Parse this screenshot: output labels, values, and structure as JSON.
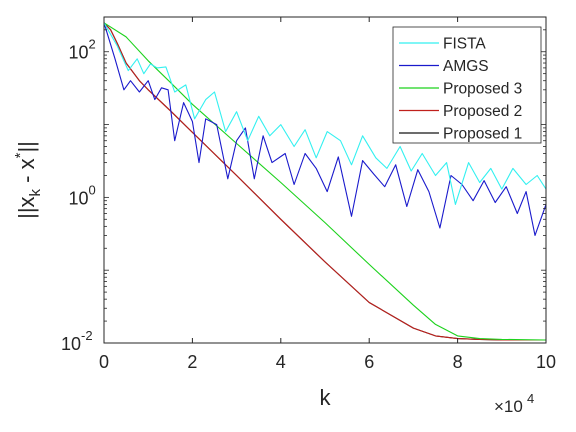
{
  "chart_data": {
    "type": "line",
    "title": "",
    "xlabel": "k",
    "ylabel": "||x_k - x^*||",
    "x_multiplier": "×10^4",
    "xlim": [
      0,
      10
    ],
    "ylim": [
      0.01,
      300
    ],
    "yscale": "log",
    "x_ticks": [
      0,
      2,
      4,
      6,
      8,
      10
    ],
    "y_ticks": [
      {
        "value": 100,
        "base": "10",
        "exp": "2"
      },
      {
        "value": 1,
        "base": "10",
        "exp": "0"
      },
      {
        "value": 0.01,
        "base": "10",
        "exp": "-2"
      }
    ],
    "legend_position": "top-right",
    "grid": false,
    "series": [
      {
        "name": "FISTA",
        "color": "#33f0f0",
        "x": [
          0,
          0.3,
          0.55,
          0.75,
          0.9,
          1.05,
          1.2,
          1.4,
          1.6,
          1.85,
          2.05,
          2.3,
          2.5,
          2.75,
          3.0,
          3.25,
          3.5,
          3.75,
          4.0,
          4.3,
          4.55,
          4.8,
          5.05,
          5.35,
          5.6,
          5.85,
          6.15,
          6.4,
          6.7,
          6.95,
          7.2,
          7.5,
          7.75,
          7.95,
          8.25,
          8.5,
          8.75,
          9.0,
          9.25,
          9.55,
          9.8,
          10.0
        ],
        "y": [
          250,
          120,
          55,
          80,
          50,
          68,
          60,
          62,
          28,
          35,
          12,
          22,
          28,
          8,
          15,
          6,
          13,
          7,
          10,
          5,
          8.5,
          3.5,
          8,
          6,
          2.8,
          7,
          3.5,
          2.5,
          5,
          2.3,
          4,
          2,
          3,
          0.8,
          3,
          1.6,
          2.5,
          1.3,
          2.5,
          1.5,
          2,
          1.3
        ]
      },
      {
        "name": "AMGS",
        "color": "#1a1acc",
        "x": [
          0,
          0.25,
          0.45,
          0.6,
          0.8,
          1.0,
          1.15,
          1.3,
          1.45,
          1.6,
          1.8,
          2.0,
          2.15,
          2.3,
          2.55,
          2.8,
          3.0,
          3.2,
          3.4,
          3.6,
          3.8,
          4.1,
          4.3,
          4.55,
          4.8,
          5.05,
          5.3,
          5.6,
          5.85,
          6.1,
          6.35,
          6.6,
          6.85,
          7.1,
          7.35,
          7.6,
          7.85,
          8.1,
          8.35,
          8.6,
          8.85,
          9.1,
          9.35,
          9.55,
          9.75,
          10.0
        ],
        "y": [
          250,
          80,
          30,
          40,
          28,
          40,
          22,
          32,
          30,
          6,
          20,
          11,
          3,
          12,
          10,
          1.8,
          6,
          9,
          1.8,
          7,
          3,
          4,
          1.5,
          4,
          2.5,
          1.2,
          3.6,
          0.55,
          3.2,
          2.1,
          1.4,
          2.8,
          0.75,
          2.4,
          1.2,
          0.38,
          2,
          1.5,
          0.9,
          1.7,
          0.85,
          1.4,
          0.6,
          1.2,
          0.3,
          0.8
        ]
      },
      {
        "name": "Proposed 3",
        "color": "#1cd21c",
        "x": [
          0,
          0.5,
          1.0,
          1.5,
          2.0,
          3.0,
          4.0,
          5.0,
          6.0,
          7.0,
          7.5,
          8.0,
          8.5,
          9.0,
          10.0
        ],
        "y": [
          250,
          160,
          75,
          38,
          19,
          5.5,
          1.6,
          0.45,
          0.12,
          0.033,
          0.018,
          0.0125,
          0.0115,
          0.0112,
          0.011
        ]
      },
      {
        "name": "Proposed 2",
        "color": "#c0201c",
        "x": [
          0,
          0.15,
          0.3,
          0.5,
          0.8,
          1.0,
          1.5,
          2.0,
          3.0,
          4.0,
          5.0,
          6.0,
          7.0,
          7.5,
          8.0,
          8.5,
          9.0,
          10.0
        ],
        "y": [
          250,
          200,
          130,
          70,
          40,
          30,
          15.5,
          7.8,
          2.0,
          0.5,
          0.13,
          0.036,
          0.016,
          0.0125,
          0.0115,
          0.0112,
          0.011,
          0.011
        ]
      },
      {
        "name": "Proposed 1",
        "color": "#141414",
        "x": [
          0,
          0.15,
          0.3,
          0.5,
          0.8,
          1.0,
          1.5,
          2.0,
          3.0,
          4.0,
          5.0,
          6.0,
          7.0,
          7.5,
          8.0,
          8.5,
          9.0,
          10.0
        ],
        "y": [
          250,
          200,
          130,
          70,
          40,
          30,
          15.5,
          7.8,
          2.0,
          0.5,
          0.13,
          0.036,
          0.016,
          0.0125,
          0.0115,
          0.0112,
          0.011,
          0.011
        ]
      }
    ]
  }
}
